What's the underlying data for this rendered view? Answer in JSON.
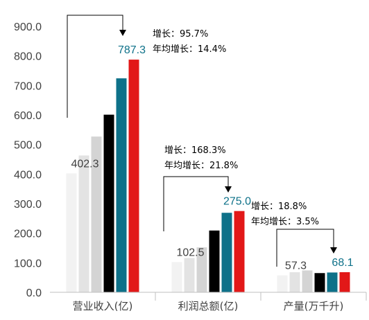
{
  "chart_data": {
    "type": "bar",
    "categories": [
      "营业收入(亿)",
      "利润总额(亿)",
      "产量(万千升)"
    ],
    "ylim": [
      0,
      900
    ],
    "yticks": [
      "0.0",
      "100.0",
      "200.0",
      "300.0",
      "400.0",
      "500.0",
      "600.0",
      "700.0",
      "800.0",
      "900.0"
    ],
    "grid": false,
    "legend": "none",
    "series_colors": [
      "#f2f2f2",
      "#e3e3e3",
      "#d4d4d4",
      "#000000",
      "#0e7189",
      "#e21818"
    ],
    "groups": [
      {
        "category": "营业收入(亿)",
        "values": [
          402.3,
          463.0,
          527.0,
          601.0,
          724.0,
          787.3
        ],
        "first_label": "402.3",
        "last_label": "787.3",
        "growth_label": "增长：95.7%",
        "cagr_label": "年均增长：14.4%"
      },
      {
        "category": "利润总额(亿)",
        "values": [
          102.5,
          116.0,
          152.0,
          209.0,
          269.0,
          275.0
        ],
        "first_label": "102.5",
        "last_label": "275.0",
        "growth_label": "增长：168.3%",
        "cagr_label": "年均增长：21.8%"
      },
      {
        "category": "产量(万千升)",
        "values": [
          57.3,
          68.0,
          74.0,
          65.0,
          67.0,
          68.1
        ],
        "first_label": "57.3",
        "last_label": "68.1",
        "growth_label": "增长：18.8%",
        "cagr_label": "年均增长：3.5%"
      }
    ]
  }
}
